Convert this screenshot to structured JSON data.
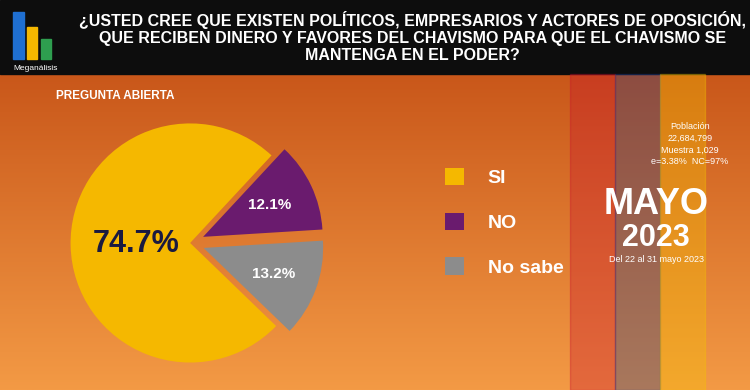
{
  "chart_data": {
    "type": "pie",
    "title": "¿USTED CREE QUE EXISTEN POLÍTICOS, EMPRESARIOS Y ACTORES DE OPOSICIÓN, QUE RECIBEN DINERO Y FAVORES DEL CHAVISMO PARA QUE EL CHAVISMO SE MANTENGA EN EL PODER?",
    "subtitle": "PREGUNTA ABIERTA",
    "categories": [
      "SI",
      "NO",
      "No sabe"
    ],
    "values": [
      74.7,
      12.1,
      13.2
    ],
    "value_labels": [
      "74.7%",
      "12.1%",
      "13.2%"
    ],
    "colors": [
      "#f5b800",
      "#6a1b6e",
      "#8c8c8c"
    ],
    "data_labels": true,
    "legend": "right",
    "annotations": [
      "Meganálisis",
      "Población",
      "22,684,799",
      "Muestra 1,029",
      "e=3.38%  NC=97%",
      "MAYO",
      "2023",
      "Del 22 al 31 mayo 2023"
    ]
  }
}
